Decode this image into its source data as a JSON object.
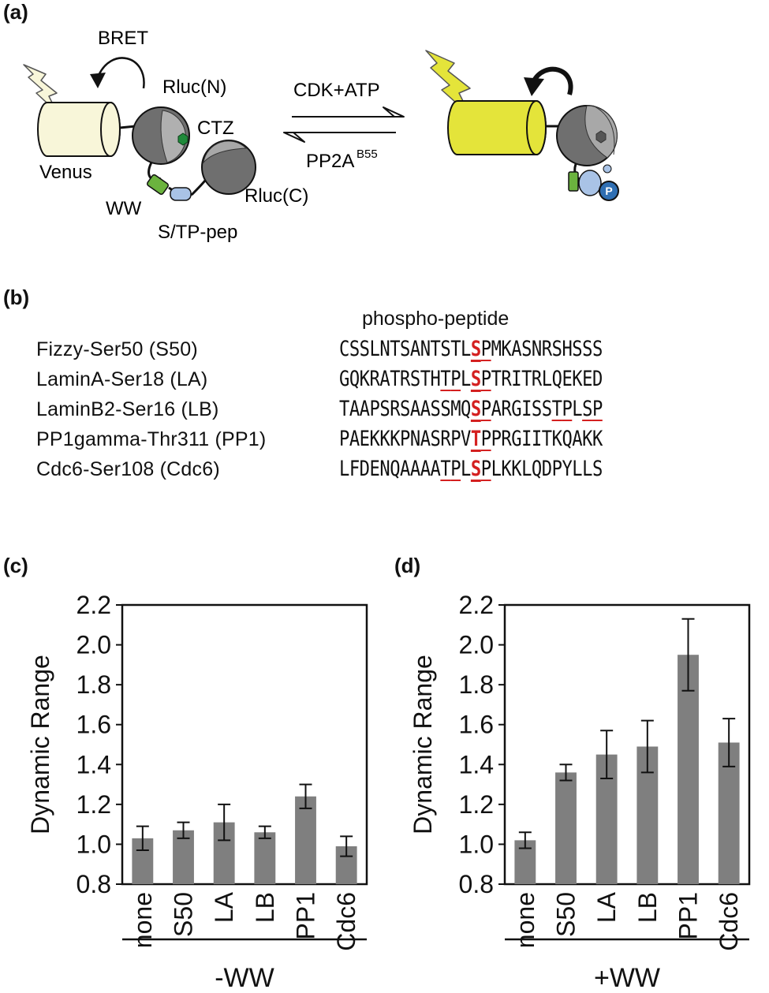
{
  "panels": {
    "a": "(a)",
    "b": "(b)",
    "c": "(c)",
    "d": "(d)"
  },
  "schematic": {
    "bret_label": "BRET",
    "venus_label": "Venus",
    "rluc_n_label": "Rluc(N)",
    "rluc_c_label": "Rluc(C)",
    "ctz_label": "CTZ",
    "ww_label": "WW",
    "stp_label": "S/TP-pep",
    "forward_label": "CDK+ATP",
    "reverse_label": "PP2A",
    "reverse_superscript": "B55",
    "phospho_symbol": "P",
    "colors": {
      "venus_pale": "#f8f6d9",
      "venus_active": "#e4e43a",
      "rluc_grey": "#6a6a6a",
      "ww_green": "#6bb33e",
      "peptide_blue": "#a9c3e6",
      "phospho_blue": "#2f6fb3",
      "ctz_green": "#1f8a3a"
    }
  },
  "sequences": {
    "header": "phospho-peptide",
    "highlight_color": "#d42020",
    "rows": [
      {
        "name": "Fizzy-Ser50  (S50)",
        "sequence": "CSSLNTSANTSTLSPMKASNRSHSSS",
        "key_index": 13,
        "underlined": [
          [
            13,
            14
          ]
        ]
      },
      {
        "name": "LaminA-Ser18 (LA)",
        "sequence": "GQKRATRSTHTPLSPTRITRLQEKED",
        "key_index": 13,
        "underlined": [
          [
            10,
            11
          ],
          [
            13,
            14
          ]
        ]
      },
      {
        "name": "LaminB2-Ser16 (LB)",
        "sequence": "TAAPSRSAASSMQSPARGISSTPLSP",
        "key_index": 13,
        "underlined": [
          [
            13,
            14
          ],
          [
            21,
            22
          ],
          [
            24,
            25
          ]
        ]
      },
      {
        "name": "PP1gamma-Thr311 (PP1)",
        "sequence": "PAEKKKPNASRPVTPPRGIITKQAKK",
        "key_index": 13,
        "underlined": [
          [
            13,
            14
          ]
        ]
      },
      {
        "name": "Cdc6-Ser108  (Cdc6)",
        "sequence": "LFDENQAAAATPLSPLKKLQDPYLLS",
        "key_index": 13,
        "underlined": [
          [
            10,
            11
          ],
          [
            13,
            14
          ]
        ]
      }
    ]
  },
  "chart_data": [
    {
      "type": "bar",
      "panel": "(c)",
      "categories": [
        "none",
        "S50",
        "LA",
        "LB",
        "PP1",
        "Cdc6"
      ],
      "values": [
        1.03,
        1.07,
        1.11,
        1.06,
        1.24,
        0.99
      ],
      "errors": [
        0.06,
        0.04,
        0.09,
        0.03,
        0.06,
        0.05
      ],
      "ylabel": "Dynamic Range",
      "group_label": "-WW",
      "ylim": [
        0.8,
        2.2
      ],
      "yticks": [
        "0.8",
        "1.0",
        "1.2",
        "1.4",
        "1.6",
        "1.8",
        "2.0",
        "2.2"
      ],
      "bar_color": "#7f7f7f"
    },
    {
      "type": "bar",
      "panel": "(d)",
      "categories": [
        "none",
        "S50",
        "LA",
        "LB",
        "PP1",
        "Cdc6"
      ],
      "values": [
        1.02,
        1.36,
        1.45,
        1.49,
        1.95,
        1.51
      ],
      "errors": [
        0.04,
        0.04,
        0.12,
        0.13,
        0.18,
        0.12
      ],
      "ylabel": "Dynamic Range",
      "group_label": "+WW",
      "ylim": [
        0.8,
        2.2
      ],
      "yticks": [
        "0.8",
        "1.0",
        "1.2",
        "1.4",
        "1.6",
        "1.8",
        "2.0",
        "2.2"
      ],
      "bar_color": "#7f7f7f"
    }
  ]
}
